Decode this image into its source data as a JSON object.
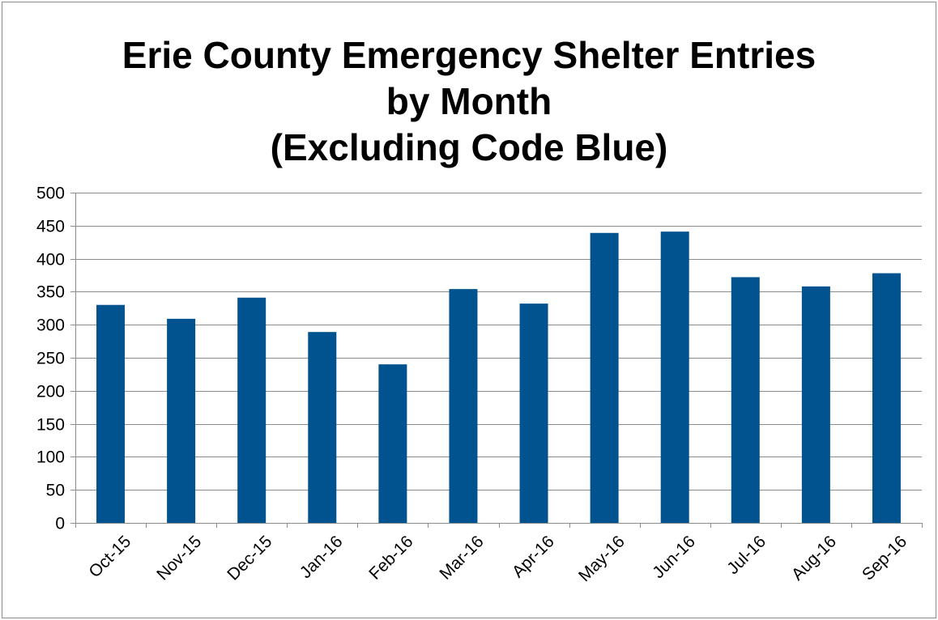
{
  "chart_data": {
    "type": "bar",
    "title_lines": [
      "Erie County Emergency Shelter Entries",
      "by Month",
      "(Excluding Code Blue)"
    ],
    "xlabel": "",
    "ylabel": "",
    "categories": [
      "Oct-15",
      "Nov-15",
      "Dec-15",
      "Jan-16",
      "Feb-16",
      "Mar-16",
      "Apr-16",
      "May-16",
      "Jun-16",
      "Jul-16",
      "Aug-16",
      "Sep-16"
    ],
    "values": [
      330,
      309,
      341,
      289,
      240,
      354,
      332,
      439,
      441,
      372,
      358,
      378
    ],
    "ylim": [
      0,
      500
    ],
    "yticks": [
      0,
      50,
      100,
      150,
      200,
      250,
      300,
      350,
      400,
      450,
      500
    ],
    "grid": true,
    "legend": "none",
    "bar_color": "#00538f",
    "grid_color": "#8c8c8c"
  }
}
